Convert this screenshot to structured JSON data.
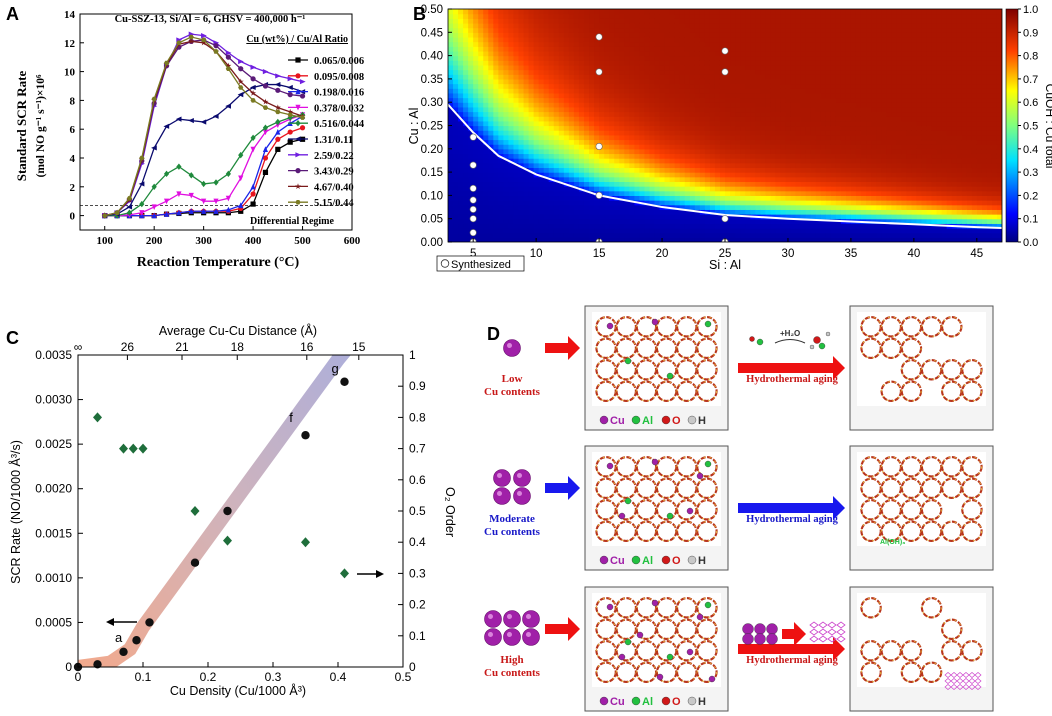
{
  "panel_labels": {
    "a": "A",
    "b": "B",
    "c": "C",
    "d": "D"
  },
  "colors": {
    "dark_green": "#1f6e3b",
    "cu": "#a020a8",
    "al": "#22c040",
    "o": "#d01818",
    "h": "#c8c8c8",
    "red_arrow": "#ee1111",
    "blue_arrow": "#1818ee"
  },
  "chart_data": [
    {
      "id": "A",
      "type": "line",
      "title": "Cu-SSZ-13, Si/Al = 6, GHSV = 400,000 h⁻¹",
      "xlabel": "Reaction Temperature (°C)",
      "ylabel_line1": "Standard SCR Rate",
      "ylabel_line2": "(mol NO g⁻¹ s⁻¹)×10⁶",
      "xlim": [
        50,
        600
      ],
      "ylim": [
        -1,
        14
      ],
      "xticks": [
        100,
        200,
        300,
        400,
        500,
        600
      ],
      "yticks": [
        0,
        2,
        4,
        6,
        8,
        10,
        12,
        14
      ],
      "legend_title": "Cu (wt%) / Cu/Al Ratio",
      "annotation": "Differential Regime",
      "threshold_y": 0.7,
      "x": [
        100,
        125,
        150,
        175,
        200,
        225,
        250,
        275,
        300,
        325,
        350,
        375,
        400,
        425,
        450,
        475,
        500
      ],
      "series": [
        {
          "name": "0.065/0.006",
          "color": "#000000",
          "marker": "square",
          "values": [
            0,
            0,
            0,
            0,
            0,
            0.1,
            0.15,
            0.2,
            0.2,
            0.2,
            0.2,
            0.3,
            0.8,
            3.0,
            4.6,
            5.1,
            5.3
          ]
        },
        {
          "name": "0.095/0.008",
          "color": "#e8141e",
          "marker": "circle",
          "values": [
            0,
            0,
            0,
            0,
            0,
            0.1,
            0.2,
            0.3,
            0.3,
            0.3,
            0.3,
            0.5,
            1.5,
            4.0,
            5.3,
            5.8,
            6.1
          ]
        },
        {
          "name": "0.198/0.016",
          "color": "#1b25e8",
          "marker": "triangle-up",
          "values": [
            0,
            0,
            0,
            0,
            0,
            0.1,
            0.2,
            0.3,
            0.3,
            0.3,
            0.4,
            0.7,
            2.0,
            4.6,
            5.8,
            6.4,
            6.9
          ]
        },
        {
          "name": "0.378/0.032",
          "color": "#e00fe0",
          "marker": "triangle-down",
          "values": [
            0,
            0,
            0.05,
            0.2,
            0.6,
            1.0,
            1.5,
            1.4,
            1.0,
            1.0,
            1.2,
            2.6,
            4.6,
            5.8,
            6.3,
            6.7,
            7.0
          ]
        },
        {
          "name": "0.516/0.044",
          "color": "#1f8a3c",
          "marker": "diamond",
          "values": [
            0,
            0,
            0.2,
            0.8,
            2.0,
            2.9,
            3.4,
            2.8,
            2.2,
            2.3,
            2.9,
            4.2,
            5.4,
            6.1,
            6.5,
            6.8,
            7.0
          ]
        },
        {
          "name": "1.31/0.11",
          "color": "#0a0a6e",
          "marker": "triangle-left",
          "values": [
            0,
            0.1,
            0.6,
            2.2,
            4.7,
            6.2,
            6.7,
            6.6,
            6.5,
            6.9,
            7.6,
            8.4,
            8.9,
            9.1,
            9.1,
            8.9,
            8.6
          ]
        },
        {
          "name": "2.59/0.22",
          "color": "#6f1fe0",
          "marker": "triangle-right",
          "values": [
            0,
            0.2,
            1.0,
            3.6,
            7.6,
            10.4,
            12.2,
            12.6,
            12.5,
            12.0,
            11.3,
            10.7,
            10.3,
            10.0,
            9.7,
            9.5,
            9.3
          ]
        },
        {
          "name": "3.43/0.29",
          "color": "#5a1a78",
          "marker": "circle",
          "values": [
            0,
            0.2,
            1.1,
            3.8,
            7.8,
            10.4,
            11.7,
            12.1,
            12.2,
            11.8,
            11.0,
            10.2,
            9.5,
            9.0,
            8.7,
            8.4,
            8.3
          ]
        },
        {
          "name": "4.67/0.40",
          "color": "#7a1a1a",
          "marker": "star",
          "values": [
            0,
            0.2,
            1.1,
            3.9,
            8.0,
            10.5,
            11.9,
            12.1,
            12.0,
            11.4,
            10.4,
            9.3,
            8.5,
            7.9,
            7.5,
            7.2,
            6.9
          ]
        },
        {
          "name": "5.15/0.44",
          "color": "#7a7a22",
          "marker": "hexagon",
          "values": [
            0,
            0.2,
            1.2,
            4.0,
            8.1,
            10.6,
            12.0,
            12.4,
            12.2,
            11.4,
            10.2,
            8.9,
            8.0,
            7.5,
            7.2,
            7.0,
            6.8
          ]
        }
      ]
    },
    {
      "id": "B",
      "type": "heatmap",
      "xlabel": "Si : Al",
      "ylabel": "Cu : Al",
      "xlim": [
        3,
        47
      ],
      "ylim": [
        0,
        0.5
      ],
      "xticks": [
        5,
        10,
        15,
        20,
        25,
        30,
        35,
        40,
        45
      ],
      "yticks": [
        0.0,
        0.05,
        0.1,
        0.15,
        0.2,
        0.25,
        0.3,
        0.35,
        0.4,
        0.45,
        0.5
      ],
      "ytick_labels": [
        "0.00",
        "0.05",
        "0.10",
        "0.15",
        "0.20",
        "0.25",
        "0.30",
        "0.35",
        "0.40",
        "0.45",
        "0.50"
      ],
      "colorbar_label": "CuOH : Cu total",
      "colorbar_ticks": [
        "0.0",
        "0.1",
        "0.2",
        "0.3",
        "0.4",
        "0.5",
        "0.6",
        "0.7",
        "0.8",
        "0.9",
        "1.0"
      ],
      "legend": "Synthesized",
      "boundary_curve": {
        "x": [
          3,
          5,
          7,
          10,
          15,
          20,
          25,
          30,
          35,
          40,
          45,
          47
        ],
        "y": [
          0.295,
          0.235,
          0.185,
          0.145,
          0.1,
          0.075,
          0.058,
          0.05,
          0.044,
          0.038,
          0.032,
          0.03
        ]
      },
      "synthesized_points": [
        [
          5,
          0
        ],
        [
          5,
          0.02
        ],
        [
          5,
          0.05
        ],
        [
          5,
          0.07
        ],
        [
          5,
          0.09
        ],
        [
          5,
          0.115
        ],
        [
          5,
          0.165
        ],
        [
          5,
          0.225
        ],
        [
          15,
          0
        ],
        [
          15,
          0.1
        ],
        [
          15,
          0.205
        ],
        [
          15,
          0.365
        ],
        [
          15,
          0.44
        ],
        [
          25,
          0
        ],
        [
          25,
          0.05
        ],
        [
          25,
          0.365
        ],
        [
          25,
          0.41
        ]
      ]
    },
    {
      "id": "C",
      "type": "scatter",
      "xlabel": "Cu Density (Cu/1000 Å³)",
      "ylabel_left": "SCR Rate (NO/1000 Å³/s)",
      "ylabel_right": "O₂ Order",
      "xlabel_top": "Average Cu-Cu Distance (Å)",
      "xlim": [
        0,
        0.5
      ],
      "ylim_left": [
        0,
        0.0035
      ],
      "ylim_right": [
        0,
        1
      ],
      "xticks": [
        0,
        0.1,
        0.2,
        0.3,
        0.4,
        0.5
      ],
      "xtick_labels": [
        "0",
        "0.1",
        "0.2",
        "0.3",
        "0.4",
        "0.5"
      ],
      "yticks_left": [
        0,
        0.0005,
        0.001,
        0.0015,
        0.002,
        0.0025,
        0.003,
        0.0035
      ],
      "ytick_labels_left": [
        "0",
        "0.0005",
        "0.0010",
        "0.0015",
        "0.0020",
        "0.0025",
        "0.0030",
        "0.0035"
      ],
      "yticks_right": [
        0,
        0.1,
        0.2,
        0.3,
        0.4,
        0.5,
        0.6,
        0.7,
        0.8,
        0.9,
        1
      ],
      "ytick_labels_right": [
        "0",
        "0.1",
        "0.2",
        "0.3",
        "0.4",
        "0.5",
        "0.6",
        "0.7",
        "0.8",
        "0.9",
        "1"
      ],
      "top_ticks": [
        {
          "label": "∞",
          "x": 0
        },
        {
          "label": "26",
          "x": 0.076
        },
        {
          "label": "21",
          "x": 0.16
        },
        {
          "label": "18",
          "x": 0.245
        },
        {
          "label": "16",
          "x": 0.352
        },
        {
          "label": "15",
          "x": 0.432
        }
      ],
      "rate_points": {
        "x": [
          0,
          0.03,
          0.07,
          0.09,
          0.11,
          0.18,
          0.23,
          0.35,
          0.41
        ],
        "y": [
          0,
          3e-05,
          0.00017,
          0.0003,
          0.0005,
          0.00117,
          0.00175,
          0.0026,
          0.0032
        ]
      },
      "o2_points": {
        "x": [
          0.03,
          0.07,
          0.085,
          0.1,
          0.18,
          0.23,
          0.35,
          0.41
        ],
        "y": [
          0.8,
          0.7,
          0.7,
          0.7,
          0.5,
          0.405,
          0.4,
          0.3
        ]
      },
      "trend": {
        "x": [
          0,
          0.05,
          0.08,
          0.1,
          0.15,
          0.2,
          0.25,
          0.3,
          0.35,
          0.4,
          0.44
        ],
        "y": [
          0,
          5e-05,
          0.0002,
          0.00045,
          0.00095,
          0.00145,
          0.00195,
          0.00245,
          0.00295,
          0.00345,
          0.0038
        ]
      },
      "annotations": [
        {
          "text": "a",
          "x": 0.057,
          "y": 0.00028
        },
        {
          "text": "f",
          "x": 0.325,
          "y": 0.00275
        },
        {
          "text": "g",
          "x": 0.39,
          "y": 0.0033
        }
      ]
    }
  ],
  "panel_d": {
    "rows": [
      {
        "label1": "Low",
        "label2": "Cu contents",
        "color": "#c81818",
        "arrow": "#ee1111",
        "aging": "Hydrothermal aging",
        "aging_color": "#c81818",
        "extra": "+H₂O"
      },
      {
        "label1": "Moderate",
        "label2": "Cu contents",
        "color": "#1818c8",
        "arrow": "#1818ee",
        "aging": "Hydrothermal aging",
        "aging_color": "#1818c8",
        "extra": "Al(OH)₃"
      },
      {
        "label1": "High",
        "label2": "Cu contents",
        "color": "#c81818",
        "arrow": "#ee1111",
        "aging": "Hydrothermal aging",
        "aging_color": "#c81818",
        "extra": ""
      }
    ],
    "legend": {
      "cu": "Cu",
      "al": "Al",
      "o": "O",
      "h": "H"
    }
  }
}
